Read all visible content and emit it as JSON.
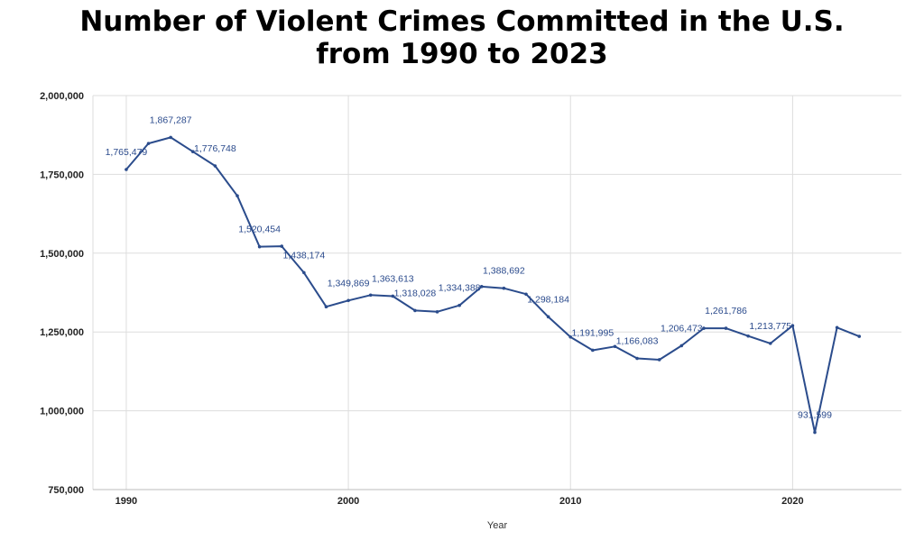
{
  "chart_data": {
    "type": "line",
    "title_line1": "Number of Violent Crimes Committed in the U.S.",
    "title_line2": "from 1990 to 2023",
    "xlabel": "Year",
    "ylabel": "",
    "xlim": [
      1988.5,
      2024.9
    ],
    "ylim": [
      750000,
      2000000
    ],
    "grid": true,
    "x_ticks": [
      "1990",
      "2000",
      "2010",
      "2020"
    ],
    "y_ticks": [
      "750,000",
      "1,000,000",
      "1,250,000",
      "1,500,000",
      "1,750,000",
      "2,000,000"
    ],
    "line_color": "#2b4c8c",
    "series": [
      {
        "x": [
          1990,
          1991,
          1992,
          1993,
          1994,
          1995,
          1996,
          1997,
          1998,
          1999,
          2000,
          2001,
          2002,
          2003,
          2004,
          2005,
          2006,
          2007,
          2008,
          2009,
          2010,
          2011,
          2012,
          2013,
          2014,
          2015,
          2016,
          2017,
          2018,
          2019,
          2020,
          2021,
          2022,
          2023
        ],
        "values": [
          1765479,
          1848000,
          1867287,
          1822000,
          1776748,
          1682000,
          1520454,
          1522000,
          1438174,
          1330000,
          1349869,
          1367000,
          1363613,
          1318028,
          1314000,
          1334388,
          1394000,
          1388692,
          1370000,
          1298184,
          1234000,
          1191995,
          1204000,
          1166083,
          1162000,
          1206473,
          1261786,
          1261786,
          1237000,
          1213775,
          1270000,
          931599,
          1264000,
          1236000
        ]
      }
    ],
    "data_labels": [
      {
        "x": 1990,
        "text": "1,765,479"
      },
      {
        "x": 1992,
        "text": "1,867,287"
      },
      {
        "x": 1994,
        "text": "1,776,748"
      },
      {
        "x": 1996,
        "text": "1,520,454"
      },
      {
        "x": 1998,
        "text": "1,438,174"
      },
      {
        "x": 2000,
        "text": "1,349,869"
      },
      {
        "x": 2002,
        "text": "1,363,613"
      },
      {
        "x": 2003,
        "text": "1,318,028"
      },
      {
        "x": 2005,
        "text": "1,334,388"
      },
      {
        "x": 2007,
        "text": "1,388,692"
      },
      {
        "x": 2009,
        "text": "1,298,184"
      },
      {
        "x": 2011,
        "text": "1,191,995"
      },
      {
        "x": 2013,
        "text": "1,166,083"
      },
      {
        "x": 2015,
        "text": "1,206,473"
      },
      {
        "x": 2017,
        "text": "1,261,786"
      },
      {
        "x": 2019,
        "text": "1,213,775"
      },
      {
        "x": 2021,
        "text": "931,599"
      }
    ]
  }
}
